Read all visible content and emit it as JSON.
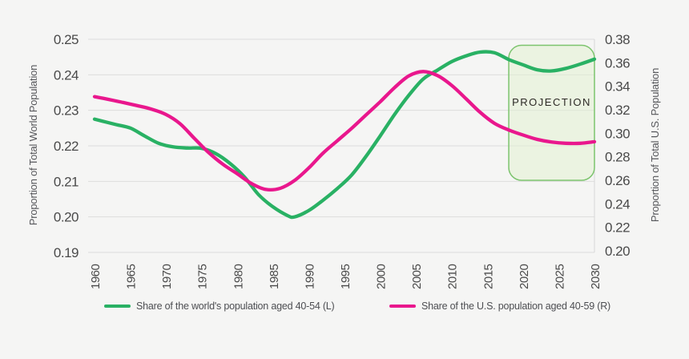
{
  "background_color": "#f5f5f4",
  "chart_data": {
    "type": "line",
    "title": "",
    "grid": "horizontal",
    "legend_position": "bottom",
    "x_axis": {
      "ticks": [
        "1960",
        "1965",
        "1970",
        "1975",
        "1980",
        "1985",
        "1990",
        "1995",
        "2000",
        "2005",
        "2010",
        "2015",
        "2020",
        "2025",
        "2030"
      ],
      "range": [
        1960,
        2030
      ]
    },
    "left_axis": {
      "title": "Proportion of Total World Population",
      "ticks": [
        "0.25",
        "0.24",
        "0.23",
        "0.22",
        "0.21",
        "0.20",
        "0.19"
      ],
      "range": [
        0.19,
        0.25
      ]
    },
    "right_axis": {
      "title": "Proportion of Total U.S. Population",
      "ticks": [
        "0.38",
        "0.36",
        "0.34",
        "0.32",
        "0.30",
        "0.28",
        "0.26",
        "0.24",
        "0.22",
        "0.20"
      ],
      "range": [
        0.2,
        0.38
      ]
    },
    "series": [
      {
        "name": "Share of the world's population aged 40-54 (L)",
        "axis": "left",
        "color": "#29b164",
        "points": [
          [
            1960,
            0.2275
          ],
          [
            1963,
            0.226
          ],
          [
            1965,
            0.225
          ],
          [
            1967,
            0.2228
          ],
          [
            1969,
            0.2207
          ],
          [
            1971,
            0.2197
          ],
          [
            1973,
            0.2194
          ],
          [
            1975,
            0.2193
          ],
          [
            1977,
            0.2178
          ],
          [
            1979,
            0.215
          ],
          [
            1981,
            0.2112
          ],
          [
            1983,
            0.2062
          ],
          [
            1985,
            0.2028
          ],
          [
            1987,
            0.2004
          ],
          [
            1988,
            0.2
          ],
          [
            1990,
            0.2018
          ],
          [
            1992,
            0.2047
          ],
          [
            1994,
            0.208
          ],
          [
            1996,
            0.2118
          ],
          [
            1998,
            0.217
          ],
          [
            2000,
            0.2228
          ],
          [
            2002,
            0.2288
          ],
          [
            2004,
            0.2342
          ],
          [
            2006,
            0.2388
          ],
          [
            2008,
            0.2413
          ],
          [
            2010,
            0.2437
          ],
          [
            2012,
            0.2453
          ],
          [
            2014,
            0.2464
          ],
          [
            2016,
            0.2462
          ],
          [
            2018,
            0.2443
          ],
          [
            2020,
            0.2428
          ],
          [
            2022,
            0.2414
          ],
          [
            2024,
            0.2411
          ],
          [
            2026,
            0.2418
          ],
          [
            2028,
            0.243
          ],
          [
            2030,
            0.2444
          ]
        ]
      },
      {
        "name": "Share of the U.S. population aged 40-59 (R)",
        "axis": "right",
        "color": "#e9178d",
        "points": [
          [
            1960,
            0.3312
          ],
          [
            1962,
            0.3288
          ],
          [
            1964,
            0.3262
          ],
          [
            1966,
            0.3235
          ],
          [
            1968,
            0.3205
          ],
          [
            1970,
            0.316
          ],
          [
            1972,
            0.308
          ],
          [
            1974,
            0.2955
          ],
          [
            1976,
            0.2835
          ],
          [
            1978,
            0.2735
          ],
          [
            1980,
            0.2655
          ],
          [
            1982,
            0.2572
          ],
          [
            1984,
            0.2522
          ],
          [
            1986,
            0.2532
          ],
          [
            1988,
            0.2598
          ],
          [
            1990,
            0.2705
          ],
          [
            1992,
            0.2832
          ],
          [
            1994,
            0.2937
          ],
          [
            1996,
            0.3042
          ],
          [
            1998,
            0.3155
          ],
          [
            2000,
            0.3268
          ],
          [
            2002,
            0.3388
          ],
          [
            2004,
            0.3488
          ],
          [
            2006,
            0.3525
          ],
          [
            2008,
            0.3492
          ],
          [
            2010,
            0.3408
          ],
          [
            2012,
            0.3295
          ],
          [
            2014,
            0.3178
          ],
          [
            2016,
            0.3085
          ],
          [
            2018,
            0.3028
          ],
          [
            2020,
            0.2985
          ],
          [
            2022,
            0.2948
          ],
          [
            2024,
            0.2925
          ],
          [
            2026,
            0.2915
          ],
          [
            2028,
            0.2915
          ],
          [
            2030,
            0.2928
          ]
        ]
      }
    ],
    "projection_box": {
      "label": "PROJECTION",
      "x_from": 2018,
      "x_to": 2030,
      "value_from": 0.2103,
      "value_to": 0.2483,
      "axis": "left",
      "fill": "#e2f0d1",
      "fill_opacity": 0.55,
      "border": "#7dc46e",
      "label_color": "#2d2a26"
    },
    "style": {
      "gridline_color": "#dcdcdc",
      "tick_label_color": "#4a4a4a",
      "right_edge_line_color": "#d8d8d8"
    }
  }
}
